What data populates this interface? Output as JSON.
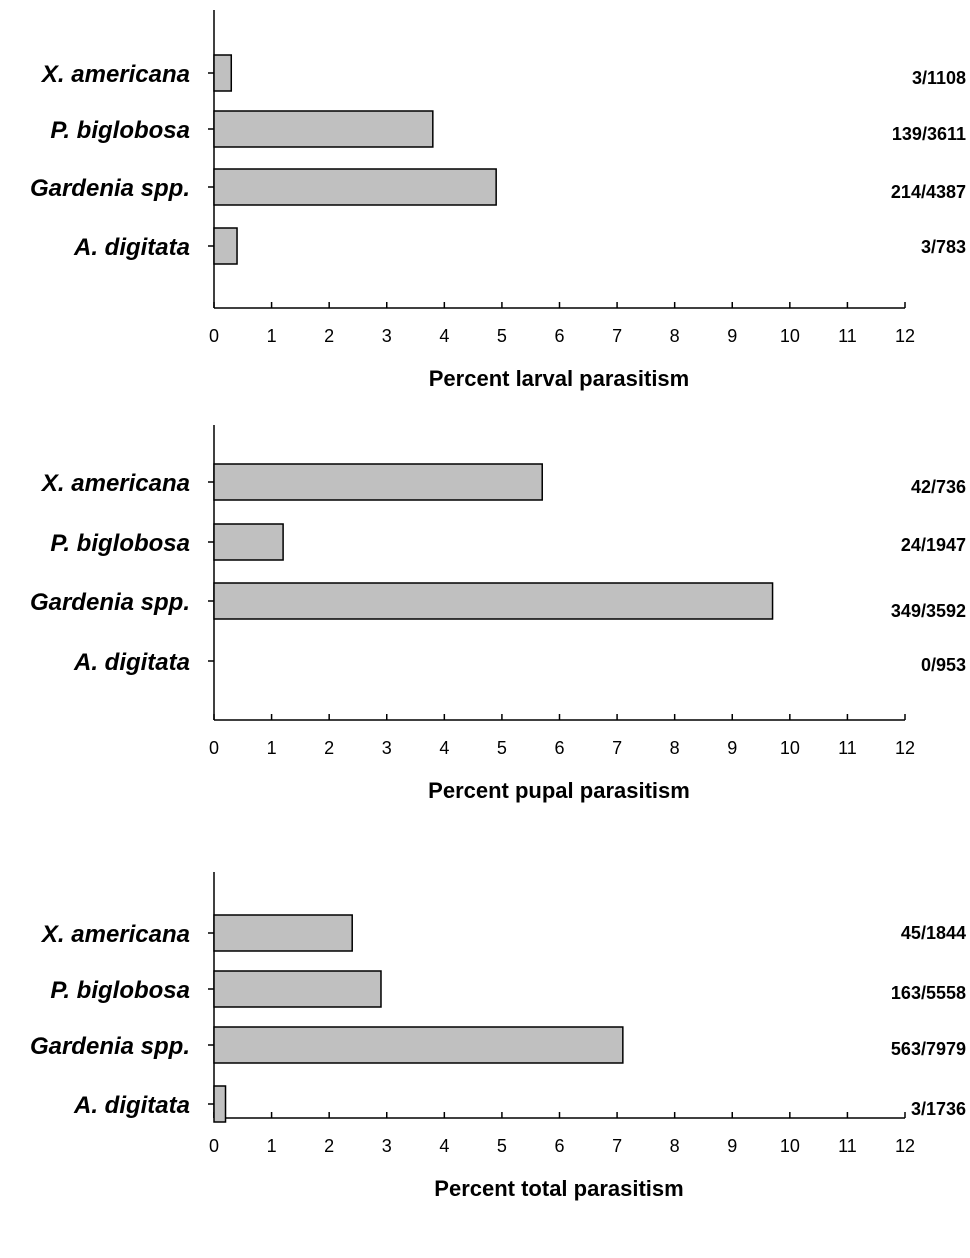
{
  "colors": {
    "bar_fill": "#c0c0c0",
    "bar_stroke": "#000000",
    "axis": "#000000"
  },
  "chart_data": [
    {
      "type": "bar",
      "orientation": "horizontal",
      "categories": [
        "X. americana",
        "P. biglobosa",
        "Gardenia spp.",
        "A. digitata"
      ],
      "values": [
        0.3,
        3.8,
        4.9,
        0.4
      ],
      "data_labels": [
        "3/1108",
        "139/3611",
        "214/4387",
        "3/783"
      ],
      "xlabel": "Percent larval parasitism",
      "ylabel": "",
      "xlim": [
        0,
        12
      ],
      "xticks": [
        0,
        1,
        2,
        3,
        4,
        5,
        6,
        7,
        8,
        9,
        10,
        11,
        12
      ],
      "grid": false,
      "legend": "none"
    },
    {
      "type": "bar",
      "orientation": "horizontal",
      "categories": [
        "X. americana",
        "P. biglobosa",
        "Gardenia spp.",
        "A. digitata"
      ],
      "values": [
        5.7,
        1.2,
        9.7,
        0
      ],
      "data_labels": [
        "42/736",
        "24/1947",
        "349/3592",
        "0/953"
      ],
      "xlabel": "Percent pupal parasitism",
      "ylabel": "",
      "xlim": [
        0,
        12
      ],
      "xticks": [
        0,
        1,
        2,
        3,
        4,
        5,
        6,
        7,
        8,
        9,
        10,
        11,
        12
      ],
      "grid": false,
      "legend": "none"
    },
    {
      "type": "bar",
      "orientation": "horizontal",
      "categories": [
        "X. americana",
        "P. biglobosa",
        "Gardenia spp.",
        "A. digitata"
      ],
      "values": [
        2.4,
        2.9,
        7.1,
        0.2
      ],
      "data_labels": [
        "45/1844",
        "163/5558",
        "563/7979",
        "3/1736"
      ],
      "xlabel": "Percent total parasitism",
      "ylabel": "",
      "xlim": [
        0,
        12
      ],
      "xticks": [
        0,
        1,
        2,
        3,
        4,
        5,
        6,
        7,
        8,
        9,
        10,
        11,
        12
      ],
      "grid": false,
      "legend": "none"
    }
  ]
}
